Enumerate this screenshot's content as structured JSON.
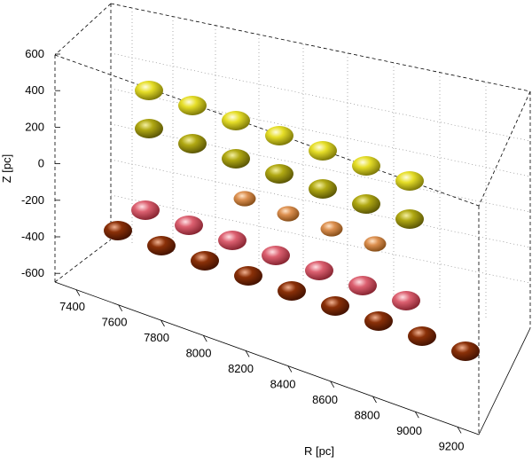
{
  "chart_data": {
    "type": "scatter3d",
    "xlabel": "R [pc]",
    "zlabel": "Z [pc]",
    "r_ticks": [
      "7400",
      "7600",
      "7800",
      "8000",
      "8200",
      "8400",
      "8600",
      "8800",
      "9000",
      "9200"
    ],
    "z_ticks": [
      "600",
      "400",
      "200",
      "0",
      "-200",
      "-400",
      "-600"
    ],
    "r_range": [
      7300,
      9300
    ],
    "z_range": [
      -650,
      650
    ],
    "grid": true,
    "box": true,
    "colors": {
      "yellow": "#d8d010",
      "olive": "#a8a010",
      "orange": "#d88848",
      "pink": "#d85a68",
      "brown": "#7a2806"
    },
    "rows": [
      {
        "row": 0,
        "color": "yellow",
        "R": [
          7400,
          7600,
          7800,
          8000,
          8200,
          8400,
          8600
        ]
      },
      {
        "row": 1,
        "color": "olive",
        "R": [
          7400,
          7600,
          7800,
          8000,
          8200,
          8400,
          8600
        ]
      },
      {
        "row": 2,
        "color": "orange",
        "R": [
          7800,
          8000,
          8200,
          8400
        ]
      },
      {
        "row": 3,
        "color": "pink",
        "R": [
          7400,
          7600,
          7800,
          8000,
          8200,
          8400,
          8600
        ]
      },
      {
        "row": 4,
        "color": "brown",
        "R": [
          7400,
          7600,
          7800,
          8000,
          8200,
          8400,
          8600,
          8800,
          9000
        ]
      }
    ]
  }
}
